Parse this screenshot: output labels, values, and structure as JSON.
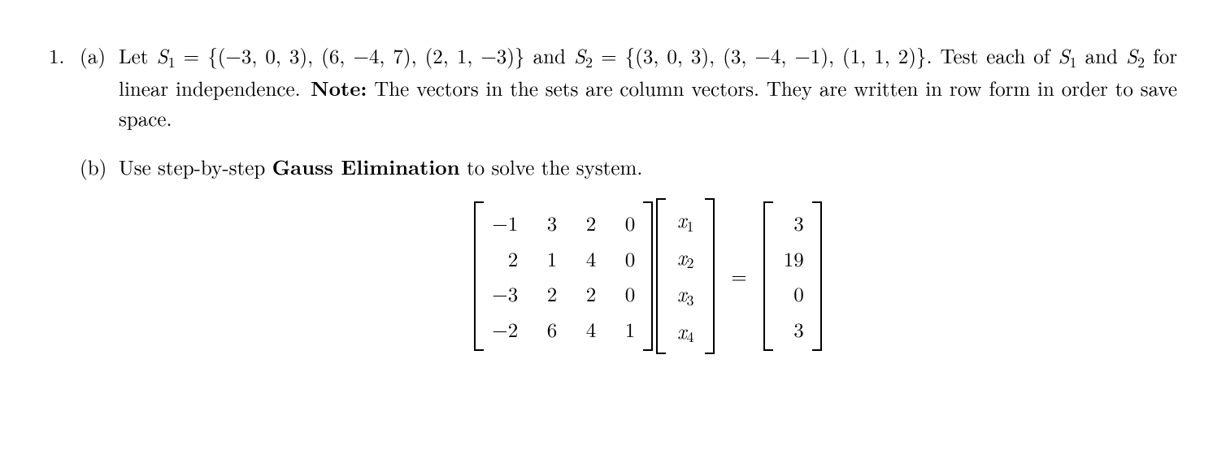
{
  "problem_number": "1.",
  "parts": {
    "a": {
      "label": "(a)",
      "pre": "Let ",
      "s1_symbol": "S",
      "s1_sub": "1",
      "eq": " = ",
      "s1_set": "{(−3, 0, 3), (6, −4, 7), (2, 1, −3)}",
      "and": " and ",
      "s2_symbol": "S",
      "s2_sub": "2",
      "s2_set": "{(3, 0, 3), (3, −4, −1), (1, 1, 2)}",
      "period": ".",
      "line2_a": "Test each of ",
      "line2_b": " and ",
      "line2_c": " for linear independence. ",
      "note_label": "Note:",
      "note_text": " The vectors in the sets are column vectors. They are written in row form in order to save space."
    },
    "b": {
      "label": "(b)",
      "pre": "Use step-by-step ",
      "method": "Gauss Elimination",
      "post": " to solve the system."
    }
  },
  "matrix": {
    "A": [
      [
        "−1",
        "3",
        "2",
        "0"
      ],
      [
        "2",
        "1",
        "4",
        "0"
      ],
      [
        "−3",
        "2",
        "2",
        "0"
      ],
      [
        "−2",
        "6",
        "4",
        "1"
      ]
    ],
    "x": [
      "x",
      "x",
      "x",
      "x"
    ],
    "xsub": [
      "1",
      "2",
      "3",
      "4"
    ],
    "eq": "=",
    "b": [
      "3",
      "19",
      "0",
      "3"
    ]
  }
}
